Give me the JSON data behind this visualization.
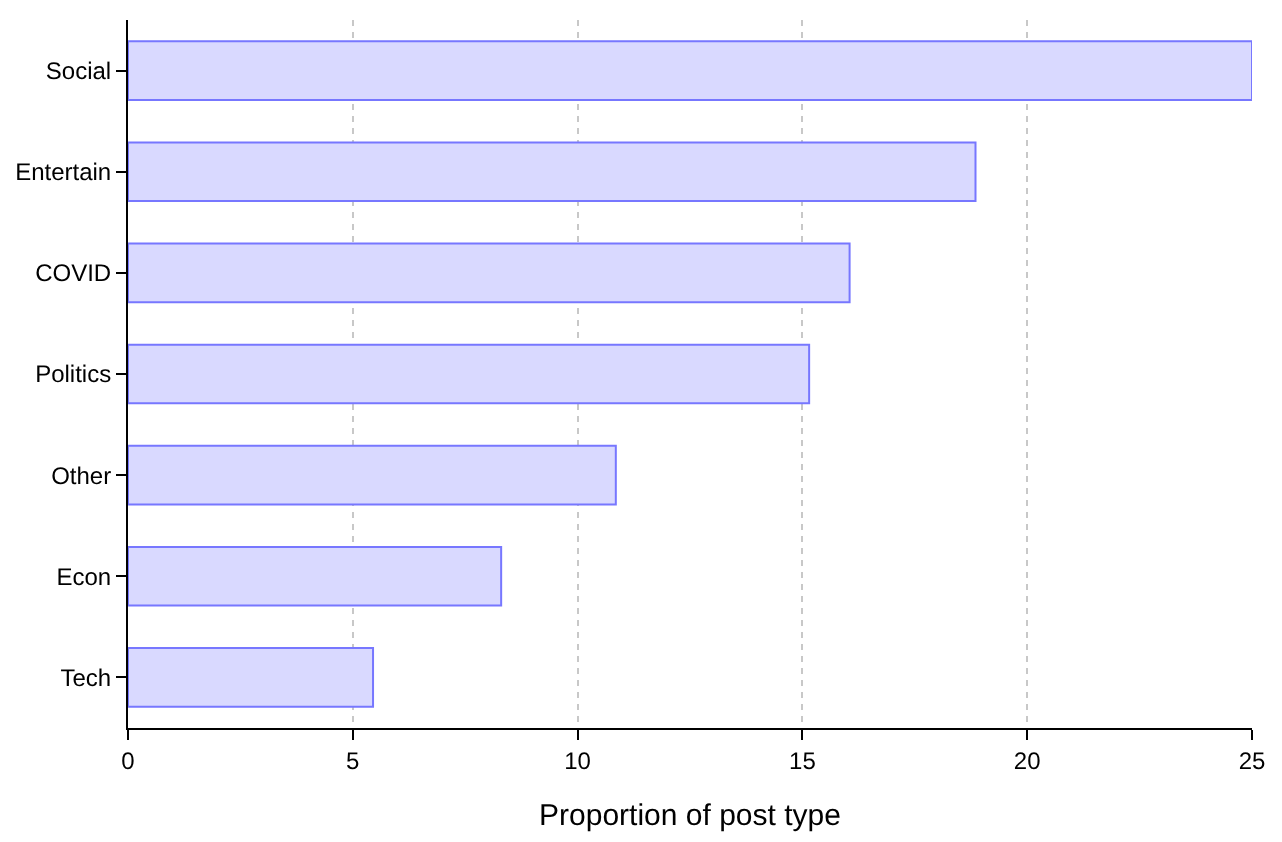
{
  "chart_data": {
    "type": "bar",
    "orientation": "horizontal",
    "xlabel": "Proportion of post type",
    "categories": [
      "Social",
      "Entertain",
      "COVID",
      "Politics",
      "Other",
      "Econ",
      "Tech"
    ],
    "values": [
      25.0,
      18.85,
      16.05,
      15.15,
      10.85,
      8.3,
      5.45
    ],
    "color": "#d9d9ff",
    "xlim": [
      0,
      25
    ],
    "xticks": [
      0,
      5,
      10,
      15,
      20,
      25
    ],
    "grid": "x",
    "legend": false
  }
}
